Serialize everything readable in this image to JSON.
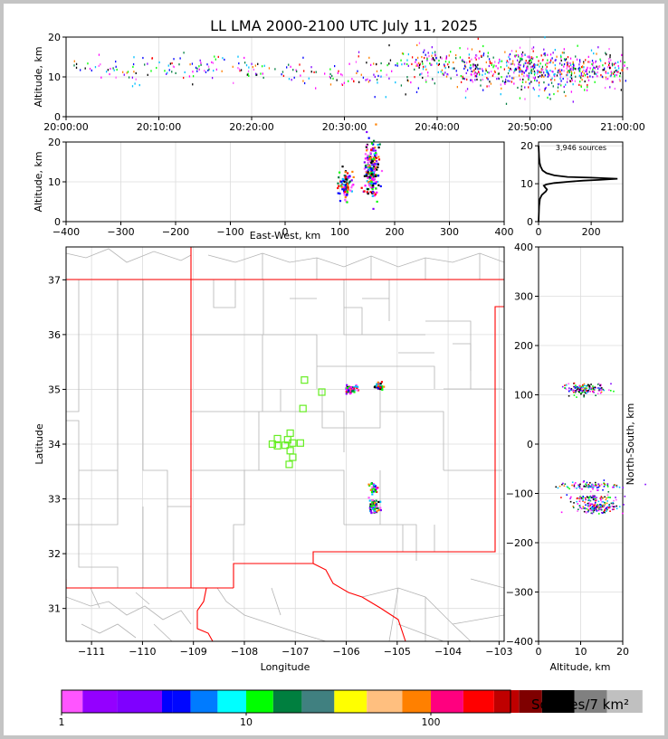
{
  "chart_data": [
    {
      "type": "scatter",
      "title": "LL LMA 2000-2100 UTC July 11, 2025",
      "ylabel": "Altitude, km",
      "ylim": [
        0,
        20
      ],
      "yticks": [
        "0",
        "10",
        "20"
      ],
      "xticks": [
        "20:00:00",
        "20:10:00",
        "20:20:00",
        "20:30:00",
        "20:40:00",
        "20:50:00",
        "21:00:00"
      ],
      "xlim_minutes": [
        0,
        60
      ],
      "clusters": [
        {
          "x": 1.0,
          "y": 12.5,
          "sx": 0.3,
          "sy": 1.5,
          "n": 4
        },
        {
          "x": 4.0,
          "y": 12.5,
          "sx": 1.2,
          "sy": 1.5,
          "n": 20
        },
        {
          "x": 7.5,
          "y": 12.0,
          "sx": 1.2,
          "sy": 1.8,
          "n": 22
        },
        {
          "x": 11.5,
          "y": 12.0,
          "sx": 1.0,
          "sy": 1.5,
          "n": 20
        },
        {
          "x": 15.0,
          "y": 12.0,
          "sx": 1.5,
          "sy": 1.6,
          "n": 32
        },
        {
          "x": 20.0,
          "y": 12.0,
          "sx": 1.2,
          "sy": 1.6,
          "n": 26
        },
        {
          "x": 24.5,
          "y": 11.5,
          "sx": 1.5,
          "sy": 1.8,
          "n": 26
        },
        {
          "x": 29.0,
          "y": 10.0,
          "sx": 1.0,
          "sy": 1.2,
          "n": 16
        },
        {
          "x": 33.0,
          "y": 11.0,
          "sx": 1.8,
          "sy": 2.5,
          "n": 45
        },
        {
          "x": 38.5,
          "y": 13.0,
          "sx": 1.8,
          "sy": 2.6,
          "n": 110
        },
        {
          "x": 44.0,
          "y": 12.0,
          "sx": 1.6,
          "sy": 2.4,
          "n": 130
        },
        {
          "x": 49.5,
          "y": 12.0,
          "sx": 1.8,
          "sy": 2.6,
          "n": 230
        },
        {
          "x": 55.0,
          "y": 11.5,
          "sx": 2.2,
          "sy": 2.4,
          "n": 230
        },
        {
          "x": 59.0,
          "y": 11.5,
          "sx": 0.8,
          "sy": 2.0,
          "n": 50
        }
      ]
    },
    {
      "type": "scatter",
      "ylabel": "Altitude, km",
      "xlabel": "East-West, km",
      "xlim": [
        -400,
        400
      ],
      "ylim": [
        0,
        20
      ],
      "xticks": [
        "−400",
        "−300",
        "−200",
        "−100",
        "0",
        "100",
        "200",
        "300",
        "400"
      ],
      "yticks": [
        "0",
        "10",
        "20"
      ],
      "clusters": [
        {
          "x": 112,
          "y": 9.5,
          "sx": 6,
          "sy": 1.8,
          "n": 90
        },
        {
          "x": 158,
          "y": 12.5,
          "sx": 6,
          "sy": 3.5,
          "n": 230
        }
      ]
    },
    {
      "type": "line",
      "annotation": "3,946 sources",
      "xlim": [
        0,
        320
      ],
      "ylim": [
        0,
        21
      ],
      "xticks": [
        "0",
        "200"
      ],
      "yticks": [
        "0",
        "10",
        "20"
      ],
      "x": [
        0,
        2,
        5,
        12,
        20,
        28,
        32,
        25,
        20,
        30,
        60,
        110,
        170,
        230,
        300,
        200,
        110,
        60,
        30,
        15,
        8,
        4,
        2,
        1,
        0
      ],
      "y": [
        0,
        4,
        6,
        7,
        7.5,
        8,
        8.5,
        9,
        9.5,
        9.8,
        10.2,
        10.5,
        10.8,
        11.0,
        11.3,
        11.6,
        11.8,
        12.2,
        12.8,
        13.5,
        14.5,
        15.5,
        17,
        18.5,
        20
      ]
    },
    {
      "type": "scatter",
      "xlabel": "Longitude",
      "ylabel": "Latitude",
      "xlim": [
        -111.5,
        -102.9
      ],
      "ylim": [
        30.4,
        37.6
      ],
      "xticks": [
        "−111",
        "−110",
        "−109",
        "−108",
        "−107",
        "−106",
        "−105",
        "−104",
        "−103"
      ],
      "yticks": [
        "31",
        "32",
        "33",
        "34",
        "35",
        "36",
        "37"
      ],
      "clusters": [
        {
          "x": -105.9,
          "y": 35.0,
          "sx": 0.06,
          "sy": 0.04,
          "n": 60
        },
        {
          "x": -105.35,
          "y": 35.05,
          "sx": 0.05,
          "sy": 0.03,
          "n": 40
        },
        {
          "x": -105.45,
          "y": 33.2,
          "sx": 0.04,
          "sy": 0.06,
          "n": 25
        },
        {
          "x": -105.45,
          "y": 32.85,
          "sx": 0.05,
          "sy": 0.08,
          "n": 60
        }
      ],
      "stations": [
        {
          "lon": -106.82,
          "lat": 35.17
        },
        {
          "lon": -106.48,
          "lat": 34.95
        },
        {
          "lon": -106.85,
          "lat": 34.65
        },
        {
          "lon": -107.1,
          "lat": 34.2
        },
        {
          "lon": -107.35,
          "lat": 34.1
        },
        {
          "lon": -107.45,
          "lat": 34.0
        },
        {
          "lon": -107.35,
          "lat": 33.97
        },
        {
          "lon": -107.2,
          "lat": 33.98
        },
        {
          "lon": -107.05,
          "lat": 34.02
        },
        {
          "lon": -106.9,
          "lat": 34.02
        },
        {
          "lon": -107.1,
          "lat": 33.88
        },
        {
          "lon": -107.05,
          "lat": 33.76
        },
        {
          "lon": -107.12,
          "lat": 33.63
        },
        {
          "lon": -107.15,
          "lat": 34.08
        }
      ]
    },
    {
      "type": "scatter",
      "xlabel": "Altitude, km",
      "ylabel": "North-South, km",
      "xlim": [
        0,
        20
      ],
      "ylim": [
        -400,
        400
      ],
      "xticks": [
        "0",
        "10",
        "20"
      ],
      "yticks": [
        "−400",
        "−300",
        "−200",
        "−100",
        "0",
        "100",
        "200",
        "300",
        "400"
      ],
      "clusters": [
        {
          "x": 11,
          "y": 112,
          "sx": 2.5,
          "sy": 6,
          "n": 150
        },
        {
          "x": 12,
          "y": -85,
          "sx": 3.5,
          "sy": 4,
          "n": 90
        },
        {
          "x": 13,
          "y": -110,
          "sx": 3.0,
          "sy": 4,
          "n": 70
        },
        {
          "x": 14,
          "y": -128,
          "sx": 2.5,
          "sy": 6,
          "n": 160
        }
      ]
    }
  ],
  "colorbar": {
    "label": "Sources/7 km²",
    "ticks": [
      "1",
      "10",
      "100"
    ],
    "colors": [
      "#ff55ff",
      "#9400ff",
      "#7f00ff",
      "#0000ff",
      "#0007ff",
      "#007bff",
      "#00ffff",
      "#00ff00",
      "#007f3f",
      "#408080",
      "#ffff00",
      "#ffbf7f",
      "#ff8000",
      "#ff007f",
      "#ff0000",
      "#bf0000",
      "#7f0000",
      "#000000",
      "#808080",
      "#c0c0c0",
      "#ffffff"
    ]
  },
  "scatter_colors": [
    "#ff00ff",
    "#8000ff",
    "#0000ff",
    "#00c0ff",
    "#00ff00",
    "#007f3f",
    "#ff8000",
    "#ff0000",
    "#000000",
    "#ff55ff"
  ]
}
